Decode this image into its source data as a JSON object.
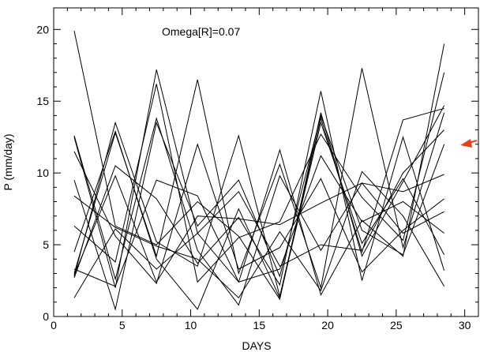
{
  "chart_data": {
    "type": "line",
    "annotation": "Omega[R]=0.07",
    "xlabel": "DAYS",
    "ylabel": "P (mm/day)",
    "xlim": [
      0,
      31
    ],
    "ylim": [
      0,
      21.5
    ],
    "xticks": [
      0,
      5,
      10,
      15,
      20,
      25,
      30
    ],
    "yticks": [
      0,
      5,
      10,
      15,
      20
    ],
    "grid": false,
    "line_color": "#000000",
    "arrow_color": "#e8401c",
    "x": [
      1.5,
      4.5,
      7.5,
      10.5,
      13.5,
      16.5,
      19.5,
      22.5,
      25.5,
      28.5
    ],
    "series": [
      {
        "values": [
          19.9,
          6.3,
          5.0,
          8.0,
          5.6,
          1.2,
          14.2,
          4.2,
          9.4,
          14.7
        ]
      },
      {
        "values": [
          12.5,
          2.0,
          17.2,
          5.8,
          2.4,
          11.6,
          1.5,
          6.7,
          4.2,
          19.0
        ]
      },
      {
        "values": [
          3.0,
          12.8,
          4.2,
          16.5,
          3.0,
          10.6,
          2.0,
          17.3,
          4.8,
          14.2
        ]
      },
      {
        "values": [
          2.8,
          13.5,
          5.2,
          3.5,
          12.6,
          1.4,
          13.8,
          4.5,
          13.7,
          14.5
        ]
      },
      {
        "values": [
          9.5,
          0.5,
          13.5,
          6.3,
          9.5,
          2.8,
          14.0,
          6.0,
          4.3,
          12.0
        ]
      },
      {
        "values": [
          6.3,
          3.8,
          16.2,
          2.4,
          5.5,
          6.6,
          12.7,
          8.3,
          5.3,
          17.0
        ]
      },
      {
        "values": [
          11.5,
          5.6,
          2.3,
          12.0,
          3.3,
          4.8,
          9.6,
          3.1,
          6.0,
          8.2
        ]
      },
      {
        "values": [
          4.5,
          12.9,
          4.0,
          0.5,
          7.5,
          1.3,
          13.5,
          5.1,
          9.6,
          4.3
        ]
      },
      {
        "values": [
          12.6,
          2.6,
          13.8,
          4.6,
          0.8,
          9.8,
          4.6,
          9.3,
          8.7,
          9.9
        ]
      },
      {
        "values": [
          2.7,
          10.5,
          8.2,
          3.7,
          6.9,
          2.2,
          15.7,
          2.5,
          12.5,
          3.2
        ]
      },
      {
        "values": [
          1.3,
          6.1,
          3.3,
          5.8,
          8.7,
          3.5,
          5.0,
          4.6,
          10.0,
          13.0
        ]
      },
      {
        "values": [
          8.4,
          6.2,
          4.9,
          4.0,
          1.3,
          5.9,
          1.8,
          10.1,
          7.0,
          2.1
        ]
      },
      {
        "values": [
          3.3,
          2.1,
          9.5,
          8.4,
          2.4,
          3.3,
          11.2,
          6.6,
          8.0,
          5.8
        ]
      },
      {
        "values": [
          2.9,
          9.8,
          2.4,
          7.0,
          6.8,
          6.4,
          7.9,
          9.3,
          5.8,
          7.3
        ]
      }
    ]
  }
}
